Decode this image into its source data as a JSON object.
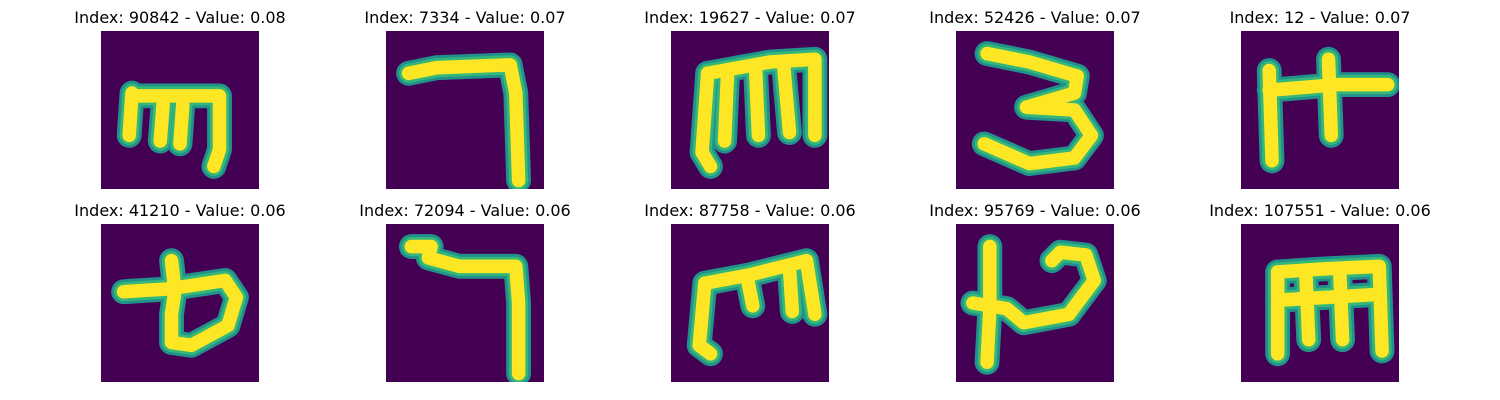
{
  "colors": {
    "background": "#440154",
    "stroke_core": "#fde725",
    "stroke_edge": "#35b779",
    "stroke_halo": "#21918c"
  },
  "panels": [
    {
      "title": "Index: 90842 - Value: 0.08",
      "glyph": [
        [
          "M",
          5.5,
          11.5,
          "L",
          21,
          11.5,
          "L",
          21,
          21,
          "L",
          20,
          24
        ],
        [
          "M",
          5.5,
          11,
          "L",
          5,
          18.5
        ],
        [
          "M",
          11,
          13,
          "L",
          10.5,
          19.5
        ],
        [
          "M",
          14.5,
          13,
          "L",
          14,
          20
        ]
      ]
    },
    {
      "title": "Index: 7334 - Value: 0.07",
      "glyph": [
        [
          "M",
          4,
          7.5,
          "L",
          9,
          6.5,
          "L",
          22,
          6,
          "L",
          23,
          11,
          "L",
          23.5,
          26.5
        ]
      ]
    },
    {
      "title": "Index: 19627 - Value: 0.07",
      "glyph": [
        [
          "M",
          6.5,
          7.5,
          "L",
          17.5,
          5.5,
          "L",
          25.5,
          5,
          "L",
          25.5,
          18.5
        ],
        [
          "M",
          6.5,
          7.5,
          "L",
          5.5,
          21.5,
          "L",
          7,
          24
        ],
        [
          "M",
          10,
          8,
          "L",
          9.5,
          19.5
        ],
        [
          "M",
          15,
          7,
          "L",
          15.5,
          18.5
        ],
        [
          "M",
          20,
          6.5,
          "L",
          21,
          18
        ]
      ]
    },
    {
      "title": "Index: 52426 - Value: 0.07",
      "glyph": [
        [
          "M",
          5.5,
          4,
          "L",
          13,
          5.5,
          "L",
          21.5,
          8,
          "L",
          21,
          11,
          "L",
          12.5,
          13.5,
          "L",
          21,
          14,
          "L",
          24,
          18.5,
          "L",
          21,
          22.5,
          "L",
          13,
          23.5,
          "L",
          5,
          20
        ]
      ]
    },
    {
      "title": "Index: 12 - Value: 0.07",
      "glyph": [
        [
          "M",
          5,
          7,
          "L",
          5.5,
          23
        ],
        [
          "M",
          5,
          10.5,
          "L",
          17,
          9.5,
          "L",
          26,
          9.5
        ],
        [
          "M",
          15.5,
          5,
          "L",
          16,
          18.5
        ]
      ]
    },
    {
      "title": "Index: 41210 - Value: 0.06",
      "glyph": [
        [
          "M",
          4,
          12,
          "L",
          12,
          11.5,
          "L",
          22,
          10,
          "L",
          24,
          13,
          "L",
          22.5,
          18,
          "L",
          16,
          21.5,
          "L",
          12.5,
          21,
          "L",
          12.5,
          16,
          "L",
          13,
          12.5
        ],
        [
          "M",
          13,
          11,
          "L",
          12.5,
          6.5
        ]
      ]
    },
    {
      "title": "Index: 72094 - Value: 0.06",
      "glyph": [
        [
          "M",
          4.5,
          4,
          "L",
          8,
          4,
          "L",
          7.5,
          6,
          "L",
          13,
          7.5,
          "L",
          23,
          7.5,
          "L",
          23.5,
          14,
          "L",
          23.5,
          26.5
        ]
      ]
    },
    {
      "title": "Index: 87758 - Value: 0.06",
      "glyph": [
        [
          "M",
          6,
          10.5,
          "L",
          14,
          9,
          "L",
          24,
          6.5,
          "L",
          25.5,
          16
        ],
        [
          "M",
          6,
          10.5,
          "L",
          5,
          21.5,
          "L",
          7,
          23
        ],
        [
          "M",
          13.5,
          9.5,
          "L",
          14.5,
          14.5
        ],
        [
          "M",
          21,
          8,
          "L",
          21.5,
          15.5
        ]
      ]
    },
    {
      "title": "Index: 95769 - Value: 0.06",
      "glyph": [
        [
          "M",
          6,
          4,
          "L",
          6,
          15,
          "L",
          5.5,
          24.5
        ],
        [
          "M",
          3,
          14,
          "L",
          9,
          15,
          "L",
          12,
          17.5,
          "L",
          20,
          16,
          "L",
          24.5,
          10,
          "L",
          23,
          5.5,
          "L",
          18.5,
          5,
          "L",
          17,
          6.5
        ]
      ]
    },
    {
      "title": "Index: 107551 - Value: 0.06",
      "glyph": [
        [
          "M",
          6.5,
          8.5,
          "L",
          14,
          8,
          "L",
          24.5,
          7.5,
          "L",
          25,
          22.5
        ],
        [
          "M",
          6.5,
          8.5,
          "L",
          6.5,
          23
        ],
        [
          "M",
          11.5,
          9,
          "L",
          12,
          20.5
        ],
        [
          "M",
          17.5,
          8.5,
          "L",
          18,
          20.5
        ],
        [
          "M",
          6.5,
          13.5,
          "L",
          24,
          12.5
        ]
      ]
    }
  ]
}
